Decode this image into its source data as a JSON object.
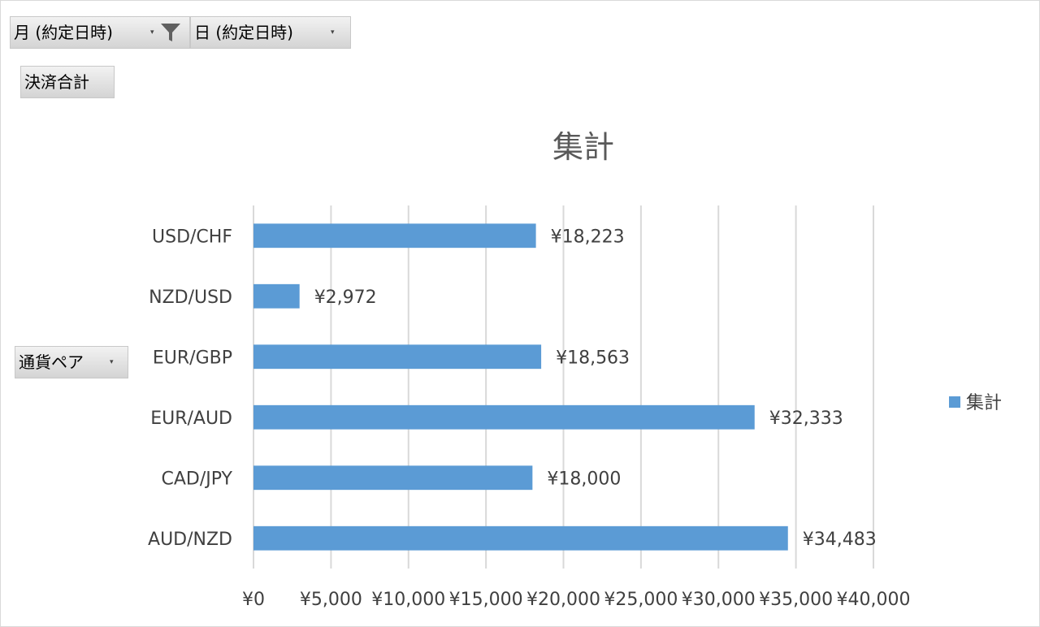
{
  "pivot_fields": {
    "filters": [
      {
        "label": "月 (約定日時)",
        "dropdown": "▾"
      },
      {
        "label": "日 (約定日時)",
        "dropdown": "▾"
      }
    ],
    "values_field": {
      "label": "決済合計"
    },
    "row_field": {
      "label": "通貨ペア",
      "dropdown": "▾"
    }
  },
  "colors": {
    "bar": "#5b9bd5",
    "grid": "#d9d9d9",
    "text": "#404040",
    "title": "#595959"
  },
  "chart_data": {
    "type": "bar",
    "orientation": "horizontal",
    "title": "集計",
    "categories": [
      "USD/CHF",
      "NZD/USD",
      "EUR/GBP",
      "EUR/AUD",
      "CAD/JPY",
      "AUD/NZD"
    ],
    "series": [
      {
        "name": "集計",
        "values": [
          18223,
          2972,
          18563,
          32333,
          18000,
          34483
        ]
      }
    ],
    "data_labels": [
      "¥18,223",
      "¥2,972",
      "¥18,563",
      "¥32,333",
      "¥18,000",
      "¥34,483"
    ],
    "x_ticks": [
      "¥0",
      "¥5,000",
      "¥10,000",
      "¥15,000",
      "¥20,000",
      "¥25,000",
      "¥30,000",
      "¥35,000",
      "¥40,000"
    ],
    "xlim": [
      0,
      40000
    ],
    "grid": true,
    "legend": "right"
  }
}
